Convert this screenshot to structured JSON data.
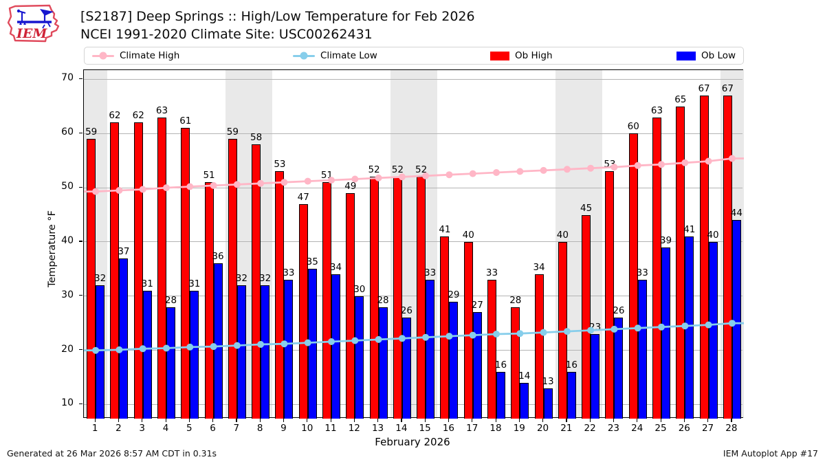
{
  "header": {
    "title_line1": "[S2187] Deep Springs :: High/Low Temperature for Feb 2026",
    "title_line2": "NCEI 1991-2020 Climate Site: USC00262431"
  },
  "logo": {
    "text": "IEM"
  },
  "legend": {
    "items": [
      {
        "label": "Climate High"
      },
      {
        "label": "Climate Low"
      },
      {
        "label": "Ob High"
      },
      {
        "label": "Ob Low"
      }
    ]
  },
  "chart_data": {
    "type": "bar",
    "title": "[S2187] Deep Springs :: High/Low Temperature for Feb 2026",
    "subtitle": "NCEI 1991-2020 Climate Site: USC00262431",
    "xlabel": "February 2026",
    "ylabel": "Temperature °F",
    "categories": [
      1,
      2,
      3,
      4,
      5,
      6,
      7,
      8,
      9,
      10,
      11,
      12,
      13,
      14,
      15,
      16,
      17,
      18,
      19,
      20,
      21,
      22,
      23,
      24,
      25,
      26,
      27,
      28
    ],
    "series": [
      {
        "name": "Climate High",
        "type": "line",
        "color": "#ffb6c6",
        "values": [
          49.3,
          49.5,
          49.7,
          50.0,
          50.2,
          50.4,
          50.6,
          50.8,
          51.0,
          51.2,
          51.4,
          51.6,
          51.8,
          52.0,
          52.2,
          52.4,
          52.6,
          52.8,
          53.0,
          53.2,
          53.4,
          53.6,
          53.8,
          54.1,
          54.3,
          54.6,
          54.9,
          55.4
        ]
      },
      {
        "name": "Climate Low",
        "type": "line",
        "color": "#87ceeb",
        "values": [
          20.0,
          20.1,
          20.3,
          20.4,
          20.6,
          20.7,
          20.9,
          21.1,
          21.2,
          21.4,
          21.6,
          21.8,
          22.0,
          22.2,
          22.4,
          22.6,
          22.8,
          23.0,
          23.1,
          23.3,
          23.5,
          23.7,
          23.9,
          24.1,
          24.3,
          24.5,
          24.7,
          25.0
        ]
      },
      {
        "name": "Ob High",
        "type": "bar",
        "color": "#fe0000",
        "labeled": true,
        "values": [
          59,
          62,
          62,
          63,
          61,
          51,
          59,
          58,
          53,
          47,
          51,
          49,
          52,
          52,
          52,
          41,
          40,
          33,
          28,
          34,
          40,
          45,
          53,
          60,
          63,
          65,
          67,
          67
        ]
      },
      {
        "name": "Ob Low",
        "type": "bar",
        "color": "#0000fe",
        "labeled": true,
        "values": [
          32,
          37,
          31,
          28,
          31,
          36,
          32,
          32,
          33,
          35,
          34,
          30,
          28,
          26,
          33,
          29,
          27,
          16,
          14,
          13,
          16,
          23,
          26,
          33,
          39,
          41,
          40,
          44
        ]
      }
    ],
    "ylim": [
      7.4,
      71.7
    ],
    "yticks": [
      10,
      20,
      30,
      40,
      50,
      60,
      70
    ],
    "grid": "horizontal",
    "grid_color": "#b4b4b4",
    "legend_position": "top",
    "weekend_bands": [
      [
        0.5,
        1.5
      ],
      [
        6.5,
        8.5
      ],
      [
        13.5,
        15.5
      ],
      [
        20.5,
        22.5
      ],
      [
        27.5,
        28.5
      ]
    ],
    "band_color": "#e9e9e9",
    "bar_edge_color": "#000000"
  },
  "footer": {
    "left": "Generated at 26 Mar 2026 8:57 AM CDT in 0.31s",
    "right": "IEM Autoplot App #17"
  }
}
